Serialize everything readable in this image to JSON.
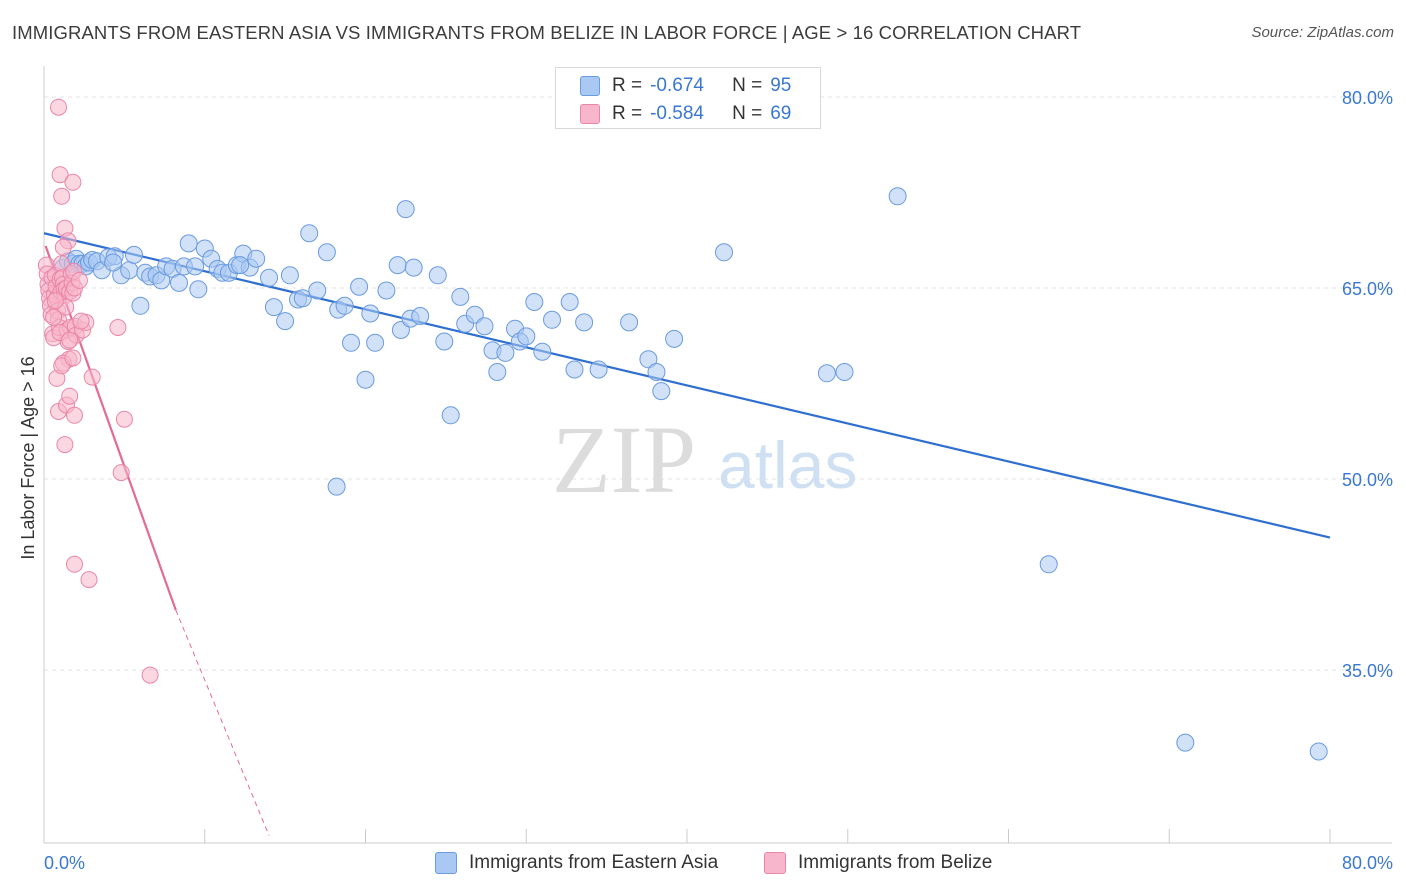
{
  "header": {
    "title": "IMMIGRANTS FROM EASTERN ASIA VS IMMIGRANTS FROM BELIZE IN LABOR FORCE | AGE > 16 CORRELATION CHART",
    "source": "Source: ZipAtlas.com"
  },
  "watermark": {
    "zip": "ZIP",
    "atlas": "atlas"
  },
  "legend": {
    "r_label": "R =",
    "n_label": "N =",
    "rows": [
      {
        "r": "-0.674",
        "n": "95"
      },
      {
        "r": "-0.584",
        "n": "69"
      }
    ]
  },
  "colors": {
    "blue_fill": "#a9c8f2",
    "blue_stroke": "#6b9be0",
    "blue_line": "#2f6fd0",
    "pink_fill": "#f7b6cb",
    "pink_stroke": "#ea86a8",
    "pink_line": "#e46a97",
    "grid": "#e3e3e3",
    "axis": "#cccccc",
    "tick_text": "#3a78d0"
  },
  "chart_data": {
    "type": "scatter",
    "title": "IMMIGRANTS FROM EASTERN ASIA VS IMMIGRANTS FROM BELIZE IN LABOR FORCE | AGE > 16 CORRELATION CHART",
    "xlabel": "",
    "ylabel": "In Labor Force | Age > 16",
    "xlim": [
      0,
      80
    ],
    "ylim": [
      22,
      83
    ],
    "x_tick_labels": [
      "0.0%",
      "80.0%"
    ],
    "y_ticks": [
      35,
      50,
      65,
      80
    ],
    "y_tick_labels": [
      "35.0%",
      "50.0%",
      "65.0%",
      "80.0%"
    ],
    "grid": true,
    "legend_position": "top-center",
    "series": [
      {
        "name": "Immigrants from Eastern Asia",
        "color": "#a9c8f2",
        "trend": {
          "x": [
            0,
            80
          ],
          "y": [
            69.3,
            45.4
          ]
        },
        "points": [
          [
            1.2,
            66.6
          ],
          [
            1.5,
            67.1
          ],
          [
            1.8,
            66.9
          ],
          [
            2.0,
            67.3
          ],
          [
            2.2,
            66.9
          ],
          [
            2.4,
            66.9
          ],
          [
            2.6,
            66.7
          ],
          [
            2.8,
            67.0
          ],
          [
            3.0,
            67.2
          ],
          [
            3.3,
            67.1
          ],
          [
            3.6,
            66.4
          ],
          [
            4.0,
            67.4
          ],
          [
            4.4,
            67.5
          ],
          [
            4.8,
            66.0
          ],
          [
            5.3,
            66.4
          ],
          [
            5.6,
            67.6
          ],
          [
            6.0,
            63.6
          ],
          [
            6.3,
            66.2
          ],
          [
            6.6,
            65.9
          ],
          [
            7.0,
            66.0
          ],
          [
            7.3,
            65.6
          ],
          [
            7.6,
            66.7
          ],
          [
            8.0,
            66.5
          ],
          [
            8.4,
            65.4
          ],
          [
            8.7,
            66.7
          ],
          [
            9.0,
            68.5
          ],
          [
            9.4,
            66.7
          ],
          [
            9.6,
            64.9
          ],
          [
            10.0,
            68.1
          ],
          [
            10.4,
            67.3
          ],
          [
            10.8,
            66.5
          ],
          [
            11.1,
            66.2
          ],
          [
            11.5,
            66.2
          ],
          [
            12.0,
            66.8
          ],
          [
            12.4,
            67.7
          ],
          [
            12.8,
            66.6
          ],
          [
            13.2,
            67.3
          ],
          [
            14.0,
            65.8
          ],
          [
            14.3,
            63.5
          ],
          [
            15.0,
            62.4
          ],
          [
            15.3,
            66.0
          ],
          [
            15.8,
            64.1
          ],
          [
            16.1,
            64.2
          ],
          [
            16.5,
            69.3
          ],
          [
            17.0,
            64.8
          ],
          [
            17.6,
            67.8
          ],
          [
            18.3,
            63.3
          ],
          [
            18.7,
            63.6
          ],
          [
            19.1,
            60.7
          ],
          [
            19.6,
            65.1
          ],
          [
            20.0,
            57.8
          ],
          [
            20.3,
            63.0
          ],
          [
            20.6,
            60.7
          ],
          [
            21.3,
            64.8
          ],
          [
            22.0,
            66.8
          ],
          [
            22.2,
            61.7
          ],
          [
            22.5,
            71.2
          ],
          [
            22.8,
            62.6
          ],
          [
            23.0,
            66.6
          ],
          [
            23.4,
            62.8
          ],
          [
            24.5,
            66.0
          ],
          [
            24.9,
            60.8
          ],
          [
            25.3,
            55.0
          ],
          [
            25.9,
            64.3
          ],
          [
            26.2,
            62.2
          ],
          [
            26.8,
            62.9
          ],
          [
            27.4,
            62.0
          ],
          [
            27.9,
            60.1
          ],
          [
            28.2,
            58.4
          ],
          [
            28.7,
            59.9
          ],
          [
            29.3,
            61.8
          ],
          [
            29.6,
            60.8
          ],
          [
            30.0,
            61.2
          ],
          [
            30.5,
            63.9
          ],
          [
            31.0,
            60.0
          ],
          [
            31.6,
            62.5
          ],
          [
            32.7,
            63.9
          ],
          [
            33.0,
            58.6
          ],
          [
            33.6,
            62.3
          ],
          [
            34.5,
            58.6
          ],
          [
            36.4,
            62.3
          ],
          [
            37.6,
            59.4
          ],
          [
            38.1,
            58.4
          ],
          [
            38.4,
            56.9
          ],
          [
            39.2,
            61.0
          ],
          [
            42.3,
            67.8
          ],
          [
            48.7,
            58.3
          ],
          [
            49.8,
            58.4
          ],
          [
            18.2,
            49.4
          ],
          [
            53.1,
            72.2
          ],
          [
            62.5,
            43.3
          ],
          [
            71.0,
            29.3
          ],
          [
            79.3,
            28.6
          ],
          [
            4.3,
            67.0
          ],
          [
            12.2,
            66.8
          ]
        ]
      },
      {
        "name": "Immigrants from Belize",
        "color": "#f7b6cb",
        "trend": {
          "x": [
            0.1,
            8.2
          ],
          "y": [
            68.3,
            39.7
          ],
          "dash_to": {
            "x": 14.0,
            "y": 22.0
          }
        },
        "points": [
          [
            0.15,
            66.8
          ],
          [
            0.2,
            66.1
          ],
          [
            0.25,
            65.3
          ],
          [
            0.3,
            64.8
          ],
          [
            0.35,
            64.2
          ],
          [
            0.4,
            63.6
          ],
          [
            0.45,
            62.9
          ],
          [
            0.5,
            65.8
          ],
          [
            0.55,
            61.4
          ],
          [
            0.6,
            61.1
          ],
          [
            0.65,
            64.5
          ],
          [
            0.7,
            66.0
          ],
          [
            0.75,
            65.1
          ],
          [
            0.8,
            64.2
          ],
          [
            0.85,
            63.2
          ],
          [
            0.9,
            62.5
          ],
          [
            0.95,
            61.9
          ],
          [
            1.0,
            65.7
          ],
          [
            1.05,
            64.7
          ],
          [
            1.1,
            66.9
          ],
          [
            1.15,
            65.8
          ],
          [
            1.2,
            65.3
          ],
          [
            1.25,
            64.9
          ],
          [
            1.3,
            64.4
          ],
          [
            1.35,
            63.5
          ],
          [
            1.4,
            65.0
          ],
          [
            1.45,
            61.7
          ],
          [
            1.5,
            60.8
          ],
          [
            1.55,
            59.4
          ],
          [
            1.6,
            64.7
          ],
          [
            1.65,
            61.9
          ],
          [
            1.7,
            66.1
          ],
          [
            1.75,
            65.4
          ],
          [
            1.8,
            64.6
          ],
          [
            1.85,
            66.3
          ],
          [
            1.9,
            65.0
          ],
          [
            1.95,
            62.0
          ],
          [
            2.0,
            61.3
          ],
          [
            2.2,
            65.6
          ],
          [
            2.4,
            61.7
          ],
          [
            2.6,
            62.3
          ],
          [
            3.0,
            58.0
          ],
          [
            0.9,
            79.2
          ],
          [
            1.0,
            73.9
          ],
          [
            1.1,
            72.2
          ],
          [
            1.3,
            69.7
          ],
          [
            1.5,
            68.7
          ],
          [
            1.2,
            68.2
          ],
          [
            1.8,
            73.3
          ],
          [
            0.8,
            57.9
          ],
          [
            0.9,
            55.3
          ],
          [
            1.4,
            55.8
          ],
          [
            1.6,
            56.5
          ],
          [
            1.9,
            55.0
          ],
          [
            1.3,
            52.7
          ],
          [
            1.2,
            59.1
          ],
          [
            1.1,
            58.9
          ],
          [
            4.6,
            61.9
          ],
          [
            5.0,
            54.7
          ],
          [
            4.8,
            50.5
          ],
          [
            1.9,
            43.3
          ],
          [
            2.8,
            42.1
          ],
          [
            6.6,
            34.6
          ],
          [
            0.6,
            62.7
          ],
          [
            0.7,
            64.0
          ],
          [
            1.0,
            61.5
          ],
          [
            2.3,
            62.4
          ],
          [
            1.6,
            60.9
          ],
          [
            1.8,
            59.5
          ]
        ]
      }
    ]
  }
}
